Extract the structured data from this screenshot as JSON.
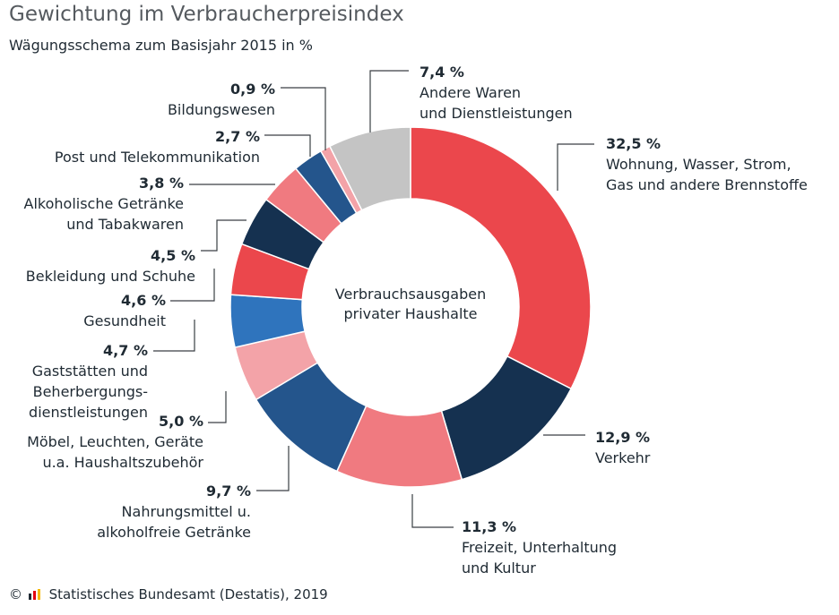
{
  "title": "Gewichtung im Verbraucherpreisindex",
  "subtitle": "Wägungsschema zum Basisjahr 2015 in %",
  "center_label": [
    "Verbrauchsausgaben",
    "privater Haushalte"
  ],
  "footer": {
    "copyright": "©",
    "source": "Statistisches Bundesamt (Destatis), 2019",
    "logo_icon": "destatis-logo-icon"
  },
  "chart_data": {
    "type": "pie",
    "variant": "donut",
    "unit": "%",
    "title": "Gewichtung im Verbraucherpreisindex",
    "subtitle": "Wägungsschema zum Basisjahr 2015 in %",
    "slices": [
      {
        "value": 32.5,
        "pct_label": "32,5 %",
        "label_lines": [
          "Wohnung, Wasser, Strom,",
          "Gas und andere Brennstoffe"
        ],
        "color": "#eb474c"
      },
      {
        "value": 12.9,
        "pct_label": "12,9 %",
        "label_lines": [
          "Verkehr"
        ],
        "color": "#153150"
      },
      {
        "value": 11.3,
        "pct_label": "11,3 %",
        "label_lines": [
          "Freizeit, Unterhaltung",
          "und Kultur"
        ],
        "color": "#f07a80"
      },
      {
        "value": 9.7,
        "pct_label": "9,7 %",
        "label_lines": [
          "Nahrungsmittel u.",
          "alkoholfreie Getränke"
        ],
        "color": "#24558c"
      },
      {
        "value": 5.0,
        "pct_label": "5,0 %",
        "label_lines": [
          "Möbel, Leuchten, Geräte",
          "u.a. Haushaltszubehör"
        ],
        "color": "#f3a3a8"
      },
      {
        "value": 4.7,
        "pct_label": "4,7 %",
        "label_lines": [
          "Gaststätten und",
          "Beherbergungs-",
          "dienstleistungen"
        ],
        "color": "#2f74bd"
      },
      {
        "value": 4.6,
        "pct_label": "4,6 %",
        "label_lines": [
          "Gesundheit"
        ],
        "color": "#eb474c"
      },
      {
        "value": 4.5,
        "pct_label": "4,5 %",
        "label_lines": [
          "Bekleidung und Schuhe"
        ],
        "color": "#153150"
      },
      {
        "value": 3.8,
        "pct_label": "3,8 %",
        "label_lines": [
          "Alkoholische Getränke",
          "und Tabakwaren"
        ],
        "color": "#f07a80"
      },
      {
        "value": 2.7,
        "pct_label": "2,7 %",
        "label_lines": [
          "Post und Telekommunikation"
        ],
        "color": "#24558c"
      },
      {
        "value": 0.9,
        "pct_label": "0,9 %",
        "label_lines": [
          "Bildungswesen"
        ],
        "color": "#f3a3a8"
      },
      {
        "value": 7.4,
        "pct_label": "7,4 %",
        "label_lines": [
          "Andere Waren",
          "und Dienstleistungen"
        ],
        "color": "#c4c4c4"
      }
    ]
  }
}
